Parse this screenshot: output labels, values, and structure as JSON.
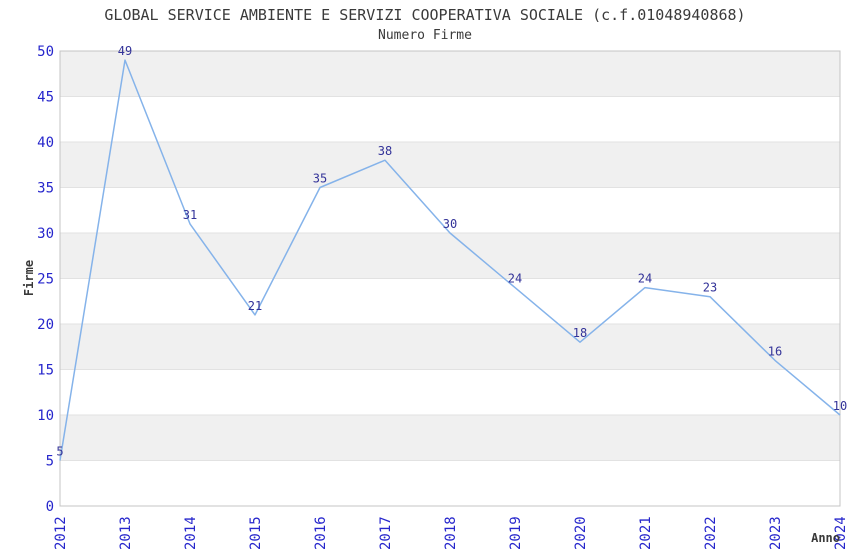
{
  "chart_data": {
    "type": "line",
    "title": "GLOBAL SERVICE AMBIENTE E SERVIZI COOPERATIVA SOCIALE (c.f.01048940868)",
    "subtitle": "Numero Firme",
    "xlabel": "Anno",
    "ylabel": "Firme",
    "x": [
      "2012",
      "2013",
      "2014",
      "2015",
      "2016",
      "2017",
      "2018",
      "2019",
      "2020",
      "2021",
      "2022",
      "2023",
      "2024"
    ],
    "values": [
      5,
      49,
      31,
      21,
      35,
      38,
      30,
      24,
      18,
      24,
      23,
      16,
      10
    ],
    "ylim": [
      0,
      50
    ],
    "ytick_step": 5,
    "yticks": [
      0,
      5,
      10,
      15,
      20,
      25,
      30,
      35,
      40,
      45,
      50
    ],
    "grid": true,
    "legend": false,
    "point_labels_shown": true,
    "x_tick_rotation_deg": -90,
    "band_pattern": "alternating horizontal bands every 5 units (shaded: 5-10, 15-20, 25-30, 35-40, 45-50)",
    "colors": {
      "line": "#85b3ea",
      "data_label": "#333399",
      "tick_label": "#2626cc",
      "band": "#f0f0f0",
      "gridline": "#e2e2e2",
      "border": "#c4c4c4",
      "text": "#3a3a3a",
      "background": "#ffffff"
    }
  }
}
